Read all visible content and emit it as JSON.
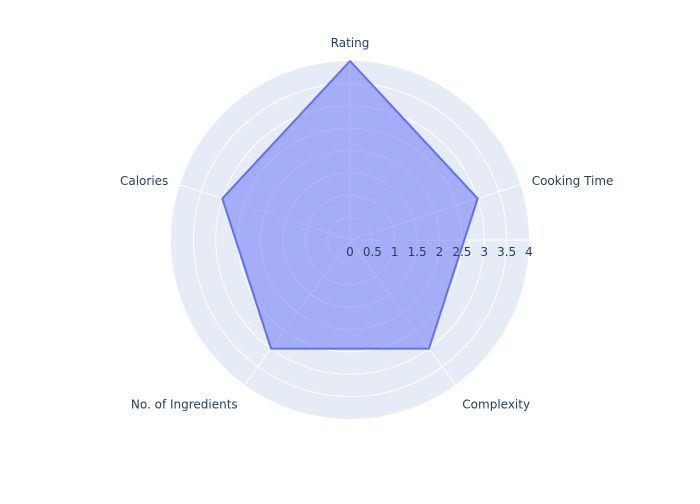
{
  "chart_data": {
    "type": "radar",
    "title": "",
    "categories": [
      "Rating",
      "Cooking Time",
      "Complexity",
      "No. of Ingredients",
      "Calories"
    ],
    "series": [
      {
        "values": [
          4,
          3,
          3,
          3,
          3
        ]
      }
    ],
    "radial_range": [
      0,
      4
    ],
    "radial_ticks": [
      "0",
      "0.5",
      "1",
      "1.5",
      "2",
      "2.5",
      "3",
      "3.5",
      "4"
    ],
    "grid": true,
    "colors": {
      "background": "#e5ecf6",
      "grid": "#ffffff",
      "series_line": "#636efa",
      "series_fill": "rgba(99,110,250,0.5)",
      "text": "#2a3f5f"
    }
  }
}
